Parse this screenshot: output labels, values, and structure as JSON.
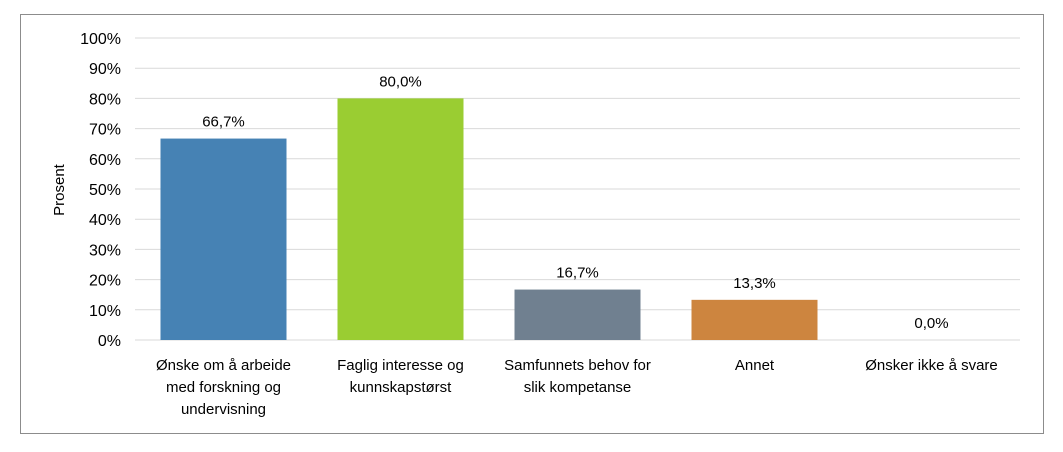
{
  "chart_data": {
    "type": "bar",
    "title": "",
    "xlabel": "",
    "ylabel": "Prosent",
    "ylim": [
      0,
      100
    ],
    "yticks": [
      "0%",
      "10%",
      "20%",
      "30%",
      "40%",
      "50%",
      "60%",
      "70%",
      "80%",
      "90%",
      "100%"
    ],
    "grid": true,
    "categories": [
      [
        "Ønske om å arbeide",
        "med forskning og",
        "undervisning"
      ],
      [
        "Faglig interesse og",
        "kunnskapstørst"
      ],
      [
        "Samfunnets behov for",
        "slik kompetanse"
      ],
      [
        "Annet"
      ],
      [
        "Ønsker ikke å svare"
      ]
    ],
    "values": [
      66.7,
      80.0,
      16.7,
      13.3,
      0.0
    ],
    "data_labels": [
      "66,7%",
      "80,0%",
      "16,7%",
      "13,3%",
      "0,0%"
    ],
    "colors": [
      "#4682B4",
      "#9ACD32",
      "#708090",
      "#CD853F",
      "#BDB76B"
    ]
  }
}
